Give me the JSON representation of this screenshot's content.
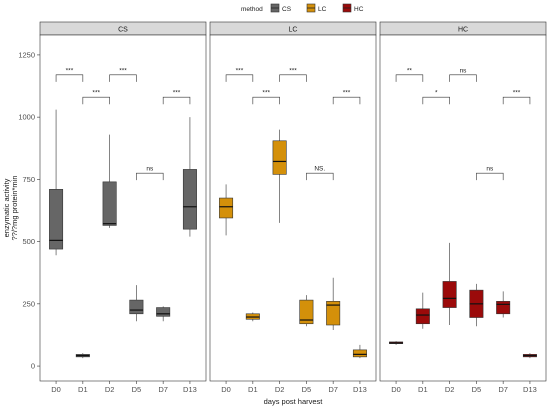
{
  "chart_data": {
    "type": "box",
    "xlabel": "days post harvest",
    "ylabel": [
      "enzymatic activity",
      "??/?mg protein*min"
    ],
    "ylim": [
      -60,
      1330
    ],
    "yticks": [
      0,
      250,
      500,
      750,
      1000,
      1250
    ],
    "categories": [
      "D0",
      "D1",
      "D2",
      "D5",
      "D7",
      "D13"
    ],
    "legend": {
      "title": "method",
      "position": "top",
      "entries": [
        {
          "name": "CS",
          "color": "#666666"
        },
        {
          "name": "LC",
          "color": "#D4900A"
        },
        {
          "name": "HC",
          "color": "#9B0A0A"
        }
      ]
    },
    "panels": [
      {
        "name": "CS",
        "color": "#666666",
        "boxes": [
          {
            "x": "D0",
            "min": 445,
            "q1": 470,
            "median": 505,
            "q3": 710,
            "max": 1030
          },
          {
            "x": "D1",
            "min": 32,
            "q1": 37,
            "median": 42,
            "q3": 47,
            "max": 52
          },
          {
            "x": "D2",
            "min": 555,
            "q1": 565,
            "median": 572,
            "q3": 740,
            "max": 930
          },
          {
            "x": "D5",
            "min": 180,
            "q1": 210,
            "median": 225,
            "q3": 265,
            "max": 325
          },
          {
            "x": "D7",
            "min": 180,
            "q1": 200,
            "median": 210,
            "q3": 235,
            "max": 240
          },
          {
            "x": "D13",
            "min": 520,
            "q1": 550,
            "median": 640,
            "q3": 790,
            "max": 1000
          }
        ],
        "significance": [
          {
            "from": "D0",
            "to": "D1",
            "label": "***",
            "y": 1170
          },
          {
            "from": "D1",
            "to": "D2",
            "label": "***",
            "y": 1080
          },
          {
            "from": "D2",
            "to": "D5",
            "label": "***",
            "y": 1170
          },
          {
            "from": "D5",
            "to": "D7",
            "label": "ns",
            "y": 775
          },
          {
            "from": "D7",
            "to": "D13",
            "label": "***",
            "y": 1080
          }
        ]
      },
      {
        "name": "LC",
        "color": "#D4900A",
        "boxes": [
          {
            "x": "D0",
            "min": 525,
            "q1": 595,
            "median": 640,
            "q3": 675,
            "max": 730
          },
          {
            "x": "D1",
            "min": 180,
            "q1": 188,
            "median": 197,
            "q3": 210,
            "max": 215
          },
          {
            "x": "D2",
            "min": 575,
            "q1": 770,
            "median": 822,
            "q3": 905,
            "max": 950
          },
          {
            "x": "D5",
            "min": 160,
            "q1": 170,
            "median": 185,
            "q3": 265,
            "max": 285
          },
          {
            "x": "D7",
            "min": 145,
            "q1": 165,
            "median": 245,
            "q3": 260,
            "max": 355
          },
          {
            "x": "D13",
            "min": 32,
            "q1": 37,
            "median": 47,
            "q3": 65,
            "max": 85
          }
        ],
        "significance": [
          {
            "from": "D0",
            "to": "D1",
            "label": "***",
            "y": 1170
          },
          {
            "from": "D1",
            "to": "D2",
            "label": "***",
            "y": 1080
          },
          {
            "from": "D2",
            "to": "D5",
            "label": "***",
            "y": 1170
          },
          {
            "from": "D5",
            "to": "D7",
            "label": "NS.",
            "y": 775
          },
          {
            "from": "D7",
            "to": "D13",
            "label": "***",
            "y": 1080
          }
        ]
      },
      {
        "name": "HC",
        "color": "#9B0A0A",
        "boxes": [
          {
            "x": "D0",
            "min": 85,
            "q1": 90,
            "median": 93,
            "q3": 97,
            "max": 100
          },
          {
            "x": "D1",
            "min": 150,
            "q1": 170,
            "median": 205,
            "q3": 230,
            "max": 295
          },
          {
            "x": "D2",
            "min": 165,
            "q1": 235,
            "median": 272,
            "q3": 340,
            "max": 495
          },
          {
            "x": "D5",
            "min": 160,
            "q1": 195,
            "median": 250,
            "q3": 305,
            "max": 330
          },
          {
            "x": "D7",
            "min": 195,
            "q1": 210,
            "median": 248,
            "q3": 260,
            "max": 300
          },
          {
            "x": "D13",
            "min": 32,
            "q1": 37,
            "median": 42,
            "q3": 47,
            "max": 52
          }
        ],
        "significance": [
          {
            "from": "D0",
            "to": "D1",
            "label": "**",
            "y": 1170
          },
          {
            "from": "D1",
            "to": "D2",
            "label": "*",
            "y": 1080
          },
          {
            "from": "D2",
            "to": "D5",
            "label": "ns",
            "y": 1170
          },
          {
            "from": "D5",
            "to": "D7",
            "label": "ns",
            "y": 775
          },
          {
            "from": "D7",
            "to": "D13",
            "label": "***",
            "y": 1080
          }
        ]
      }
    ]
  }
}
